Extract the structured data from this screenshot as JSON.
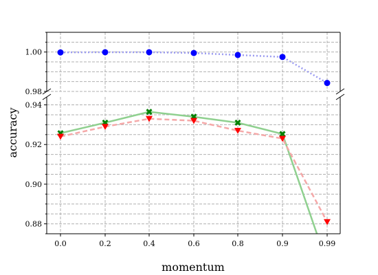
{
  "chart_data": {
    "type": "line",
    "xlabel": "momentum",
    "ylabel": "accuracy",
    "categories": [
      "0.0",
      "0.2",
      "0.4",
      "0.6",
      "0.8",
      "0.9",
      "0.99"
    ],
    "broken_y_axis": true,
    "grid": true,
    "panels": [
      {
        "id": "top",
        "ylim": [
          0.98,
          1.01
        ],
        "yticks": [
          "0.98",
          "1.00"
        ]
      },
      {
        "id": "bottom",
        "ylim": [
          0.875,
          0.944
        ],
        "yticks": [
          "0.88",
          "0.90",
          "0.92",
          "0.94"
        ]
      }
    ],
    "series": [
      {
        "color": "#0000ff",
        "line_color": "#9a9af0",
        "line_style": "dotted",
        "marker": "circle",
        "values": [
          0.9998,
          0.9999,
          0.9999,
          0.9995,
          0.9985,
          0.9975,
          0.9843
        ]
      },
      {
        "color": "#008000",
        "line_color": "#8fd08f",
        "line_style": "solid",
        "marker": "x",
        "values": [
          0.9257,
          0.931,
          0.9365,
          0.934,
          0.931,
          0.9253,
          0.86
        ]
      },
      {
        "color": "#ff0000",
        "line_color": "#f5a8a8",
        "line_style": "dashed",
        "marker": "triangle-down",
        "values": [
          0.924,
          0.929,
          0.933,
          0.932,
          0.927,
          0.923,
          0.881
        ]
      }
    ]
  }
}
